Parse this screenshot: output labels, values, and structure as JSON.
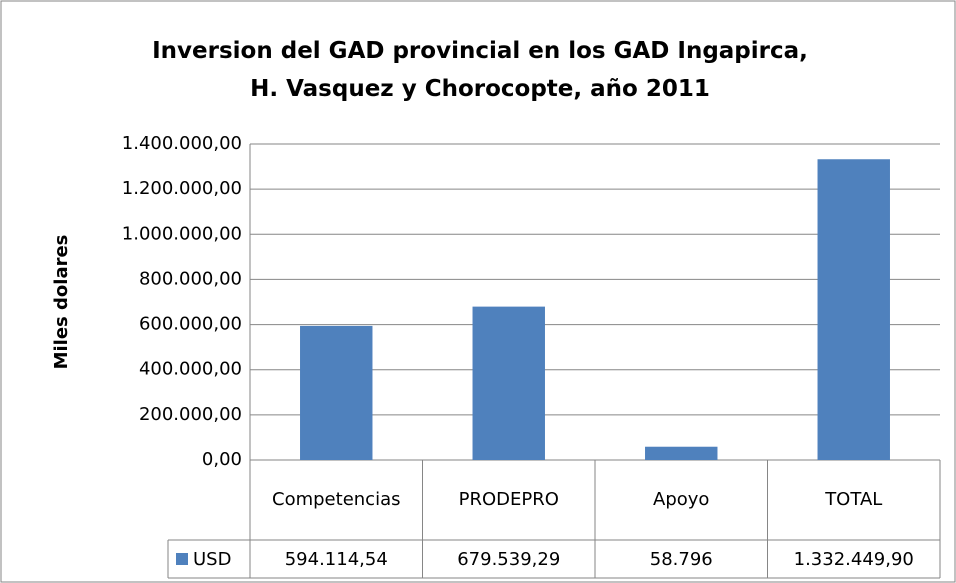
{
  "chart_data": {
    "type": "bar",
    "title": "Inversion del GAD provincial en los GAD Ingapirca, H. Vasquez y Chorocopte, año 2011",
    "y_label": "Miles dolares",
    "categories": [
      "Competencias",
      "PRODEPRO",
      "Apoyo",
      "TOTAL"
    ],
    "series": [
      {
        "name": "USD",
        "color": "#4f81bd",
        "values": [
          594114.54,
          679539.29,
          58796,
          1332449.9
        ],
        "value_labels": [
          "594.114,54",
          "679.539,29",
          "58.796",
          "1.332.449,90"
        ]
      }
    ],
    "ylim": [
      0,
      1400000
    ],
    "yticks": [
      {
        "value": 0,
        "label": "0,00"
      },
      {
        "value": 200000,
        "label": "200.000,00"
      },
      {
        "value": 400000,
        "label": "400.000,00"
      },
      {
        "value": 600000,
        "label": "600.000,00"
      },
      {
        "value": 800000,
        "label": "800.000,00"
      },
      {
        "value": 1000000,
        "label": "1.000.000,00"
      },
      {
        "value": 1200000,
        "label": "1.200.000,00"
      },
      {
        "value": 1400000,
        "label": "1.400.000,00"
      }
    ],
    "grid": true
  }
}
